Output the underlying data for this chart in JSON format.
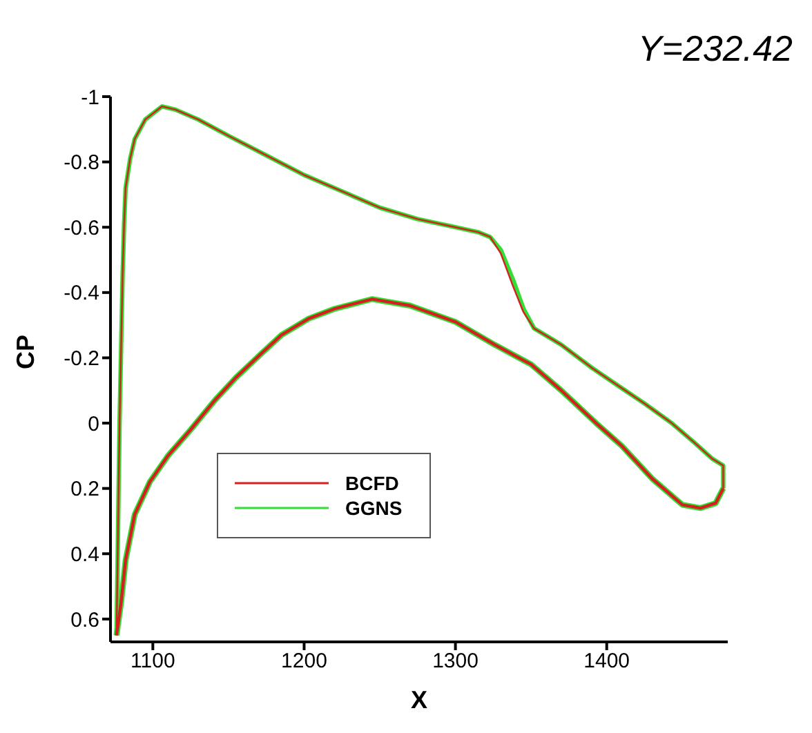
{
  "chart_data": {
    "type": "line",
    "title": "Y=232.42",
    "xlabel": "X",
    "ylabel": "CP",
    "xlim": [
      1072,
      1480
    ],
    "ylim": [
      0.67,
      -1
    ],
    "xticks": [
      1100,
      1200,
      1300,
      1400
    ],
    "yticks": [
      -1,
      -0.8,
      -0.6,
      -0.4,
      -0.2,
      0,
      0.2,
      0.4,
      0.6
    ],
    "grid": false,
    "legend": "bottom left",
    "marker": "none",
    "line_style": "solid",
    "series": [
      {
        "name": "BCFD",
        "color": "#d42020",
        "x": [
          1076,
          1078,
          1080,
          1081,
          1082,
          1085,
          1088,
          1095,
          1106,
          1115,
          1130,
          1150,
          1175,
          1200,
          1225,
          1250,
          1275,
          1300,
          1315,
          1323,
          1330,
          1338,
          1345,
          1352,
          1370,
          1390,
          1409,
          1425,
          1443,
          1458,
          1470,
          1477,
          1477
        ],
        "values": [
          0.65,
          0,
          -0.45,
          -0.61,
          -0.72,
          -0.81,
          -0.87,
          -0.93,
          -0.97,
          -0.96,
          -0.93,
          -0.88,
          -0.82,
          -0.76,
          -0.71,
          -0.66,
          -0.625,
          -0.6,
          -0.585,
          -0.57,
          -0.52,
          -0.42,
          -0.34,
          -0.29,
          -0.24,
          -0.17,
          -0.11,
          -0.06,
          0,
          0.06,
          0.11,
          0.13,
          0.2
        ]
      },
      {
        "color": "#d42020",
        "x": [
          1076,
          1079,
          1082,
          1088,
          1098,
          1110,
          1125,
          1141,
          1155,
          1171,
          1185,
          1203,
          1220,
          1245,
          1270,
          1300,
          1326,
          1350,
          1370,
          1393,
          1410,
          1430,
          1450,
          1462,
          1472,
          1477
        ],
        "values": [
          0.65,
          0.55,
          0.42,
          0.28,
          0.18,
          0.1,
          0.02,
          -0.07,
          -0.14,
          -0.21,
          -0.27,
          -0.32,
          -0.35,
          -0.38,
          -0.36,
          -0.31,
          -0.24,
          -0.18,
          -0.1,
          0,
          0.07,
          0.17,
          0.25,
          0.26,
          0.245,
          0.2
        ]
      },
      {
        "name": "GGNS",
        "color": "#33dd33",
        "x": [
          1076,
          1078,
          1080,
          1081,
          1082,
          1085,
          1088,
          1095,
          1106,
          1115,
          1130,
          1150,
          1175,
          1200,
          1225,
          1250,
          1275,
          1300,
          1315,
          1323,
          1330,
          1338,
          1345,
          1352,
          1370,
          1390,
          1409,
          1425,
          1443,
          1458,
          1470,
          1477,
          1477
        ],
        "values": [
          0.65,
          0,
          -0.45,
          -0.61,
          -0.72,
          -0.81,
          -0.87,
          -0.93,
          -0.97,
          -0.96,
          -0.93,
          -0.88,
          -0.82,
          -0.76,
          -0.71,
          -0.66,
          -0.625,
          -0.6,
          -0.585,
          -0.57,
          -0.53,
          -0.44,
          -0.35,
          -0.29,
          -0.24,
          -0.17,
          -0.11,
          -0.06,
          0,
          0.06,
          0.11,
          0.13,
          0.2
        ]
      },
      {
        "color": "#33dd33",
        "x": [
          1076,
          1079,
          1082,
          1088,
          1098,
          1110,
          1125,
          1141,
          1155,
          1171,
          1185,
          1203,
          1220,
          1245,
          1270,
          1300,
          1326,
          1350,
          1370,
          1393,
          1410,
          1430,
          1450,
          1462,
          1472,
          1477
        ],
        "values": [
          0.65,
          0.55,
          0.42,
          0.28,
          0.18,
          0.1,
          0.02,
          -0.07,
          -0.14,
          -0.21,
          -0.27,
          -0.32,
          -0.35,
          -0.38,
          -0.36,
          -0.31,
          -0.24,
          -0.18,
          -0.1,
          0,
          0.07,
          0.17,
          0.25,
          0.26,
          0.245,
          0.2
        ]
      }
    ]
  }
}
